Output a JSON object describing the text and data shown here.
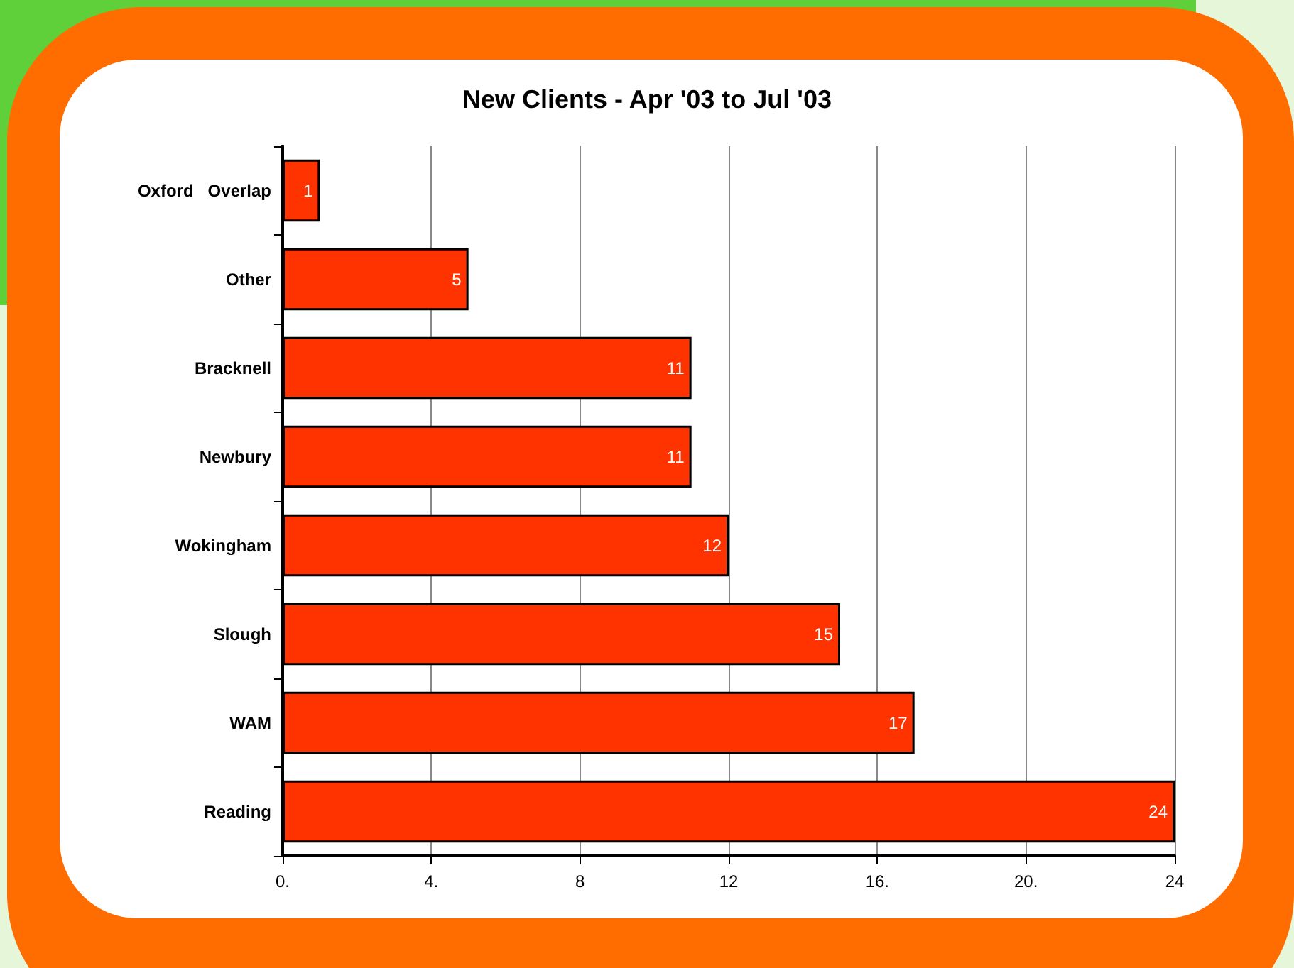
{
  "chart_data": {
    "type": "bar",
    "orientation": "horizontal",
    "title": "New Clients - Apr '03 to Jul '03",
    "categories": [
      "Oxford   Overlap",
      "Other",
      "Bracknell",
      "Newbury",
      "Wokingham",
      "Slough",
      "WAM",
      "Reading"
    ],
    "values": [
      1,
      5,
      11,
      11,
      12,
      15,
      17,
      24
    ],
    "color": "#ff3300",
    "xlim": [
      0,
      24
    ],
    "xticks": [
      {
        "value": 0,
        "label": "0."
      },
      {
        "value": 4,
        "label": "4."
      },
      8,
      12,
      {
        "value": 16,
        "label": "16."
      },
      {
        "value": 20,
        "label": "20."
      },
      24
    ],
    "grid": "x",
    "data_labels": true
  }
}
